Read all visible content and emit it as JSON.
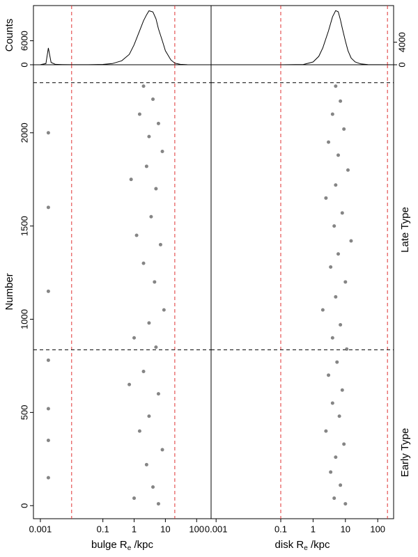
{
  "chart_data": [
    {
      "type": "line",
      "y_label": "Counts",
      "log_x": true,
      "xlim": [
        0.0006,
        290
      ],
      "ylim": [
        0,
        14800
      ],
      "yticks": [
        0,
        6000
      ],
      "color": "#000000",
      "vlines": [
        0.01,
        20
      ],
      "x": [
        0.0006,
        0.001,
        0.0015,
        0.0018,
        0.0022,
        0.003,
        0.005,
        0.01,
        0.05,
        0.1,
        0.2,
        0.4,
        0.7,
        1,
        1.5,
        2,
        2.5,
        3,
        4,
        5,
        6,
        8,
        10,
        15,
        20,
        30,
        50,
        100,
        290
      ],
      "values": [
        0,
        10,
        300,
        4200,
        600,
        100,
        50,
        20,
        30,
        80,
        300,
        1000,
        2600,
        5000,
        8500,
        11000,
        12500,
        13500,
        13200,
        11500,
        9000,
        6000,
        3500,
        1200,
        400,
        100,
        20,
        0,
        0
      ]
    },
    {
      "type": "line",
      "log_x": true,
      "xlim": [
        0.0007,
        310
      ],
      "ylim": [
        0,
        10500
      ],
      "yticks": [
        0,
        4000
      ],
      "y_axis_side": "right",
      "color": "#000000",
      "vlines": [
        0.1,
        200
      ],
      "x": [
        0.0007,
        0.1,
        0.5,
        1,
        1.5,
        2,
        3,
        4,
        5,
        6,
        7,
        8,
        10,
        12,
        15,
        20,
        30,
        50,
        100,
        310
      ],
      "values": [
        0,
        0,
        50,
        500,
        1500,
        3000,
        6000,
        8500,
        9600,
        9400,
        8000,
        6500,
        4200,
        2500,
        1200,
        500,
        150,
        40,
        10,
        0
      ]
    },
    {
      "type": "scatter",
      "y_label": "Number",
      "x_label": {
        "text": "bulge R",
        "sub": "e",
        "suffix": " /kpc"
      },
      "log_x": true,
      "xlim": [
        0.0006,
        290
      ],
      "xticks": [
        0.001,
        0.1,
        1,
        10,
        100
      ],
      "ylim": [
        -70,
        2365
      ],
      "yticks": [
        0,
        500,
        1000,
        1500,
        2000
      ],
      "vlines": [
        0.01,
        20
      ],
      "hlines": [
        836,
        2269
      ],
      "color": "#666666",
      "x": [
        2,
        4,
        1.5,
        6,
        3,
        0.0018,
        8,
        2.5,
        0.8,
        5,
        0.0018,
        3.5,
        1.2,
        7,
        2,
        4.5,
        0.0018,
        9,
        3,
        1,
        5,
        0.0018,
        2,
        0.7,
        6,
        0.0018,
        3,
        1.5,
        0.0018,
        8,
        2.5,
        0.0018,
        4,
        1,
        6
      ],
      "values": [
        2250,
        2180,
        2100,
        2050,
        1980,
        2000,
        1900,
        1820,
        1750,
        1700,
        1600,
        1550,
        1450,
        1400,
        1300,
        1200,
        1150,
        1050,
        980,
        900,
        850,
        780,
        720,
        650,
        600,
        520,
        480,
        400,
        350,
        300,
        220,
        150,
        100,
        40,
        10
      ]
    },
    {
      "type": "scatter",
      "x_label": {
        "text": "disk R",
        "sub": "e",
        "suffix": " /kpc"
      },
      "log_x": true,
      "xlim": [
        0.0007,
        310
      ],
      "xticks": [
        0.001,
        0.1,
        1,
        10,
        100
      ],
      "ylim": [
        -70,
        2365
      ],
      "vlines": [
        0.1,
        200
      ],
      "hlines": [
        836,
        2269
      ],
      "color": "#666666",
      "annotations": [
        "Late Type",
        "Early Type"
      ],
      "x": [
        5,
        7,
        4,
        9,
        3,
        6,
        12,
        5,
        2.5,
        8,
        4.5,
        15,
        6,
        3.5,
        10,
        5,
        2,
        7,
        4,
        11,
        5.5,
        3,
        8,
        4,
        6.5,
        2.5,
        9,
        5,
        3.5,
        7,
        4.5,
        10
      ],
      "values": [
        2250,
        2170,
        2100,
        2020,
        1950,
        1880,
        1800,
        1720,
        1650,
        1570,
        1500,
        1420,
        1350,
        1280,
        1200,
        1120,
        1050,
        970,
        900,
        840,
        770,
        700,
        620,
        550,
        480,
        400,
        330,
        260,
        180,
        110,
        40,
        10
      ]
    }
  ]
}
